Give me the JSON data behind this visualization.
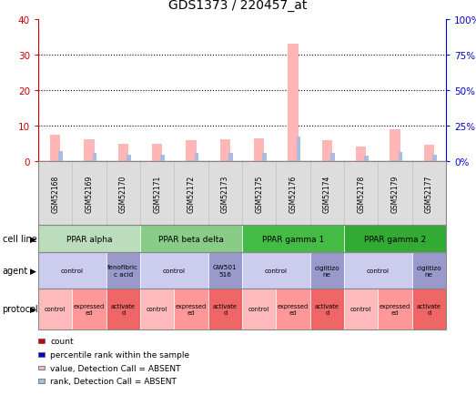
{
  "title": "GDS1373 / 220457_at",
  "samples": [
    "GSM52168",
    "GSM52169",
    "GSM52170",
    "GSM52171",
    "GSM52172",
    "GSM52173",
    "GSM52175",
    "GSM52176",
    "GSM52174",
    "GSM52178",
    "GSM52179",
    "GSM52177"
  ],
  "values": [
    7.5,
    6.2,
    4.8,
    5.0,
    6.0,
    6.2,
    6.5,
    33.0,
    6.0,
    4.2,
    9.0,
    4.5
  ],
  "ranks": [
    7.0,
    5.8,
    4.5,
    4.8,
    5.5,
    5.8,
    6.0,
    17.5,
    5.5,
    4.0,
    6.5,
    4.2
  ],
  "value_color": "#FFB6B6",
  "rank_color": "#AABBDD",
  "ylim_left": [
    0,
    40
  ],
  "ylim_right": [
    0,
    100
  ],
  "yticks_left": [
    0,
    10,
    20,
    30,
    40
  ],
  "yticks_right": [
    0,
    25,
    50,
    75,
    100
  ],
  "ytick_labels_left": [
    "0",
    "10",
    "20",
    "30",
    "40"
  ],
  "ytick_labels_right": [
    "0%",
    "25%",
    "50%",
    "75%",
    "100%"
  ],
  "left_axis_color": "#CC0000",
  "right_axis_color": "#0000CC",
  "cell_lines": [
    {
      "label": "PPAR alpha",
      "start": 0,
      "end": 3,
      "color": "#BBDDBB"
    },
    {
      "label": "PPAR beta delta",
      "start": 3,
      "end": 6,
      "color": "#88CC88"
    },
    {
      "label": "PPAR gamma 1",
      "start": 6,
      "end": 9,
      "color": "#44BB44"
    },
    {
      "label": "PPAR gamma 2",
      "start": 9,
      "end": 12,
      "color": "#33AA33"
    }
  ],
  "agents": [
    {
      "label": "control",
      "start": 0,
      "end": 2,
      "color": "#CCCCEE"
    },
    {
      "label": "fenofibric\nc acid",
      "start": 2,
      "end": 3,
      "color": "#9999CC"
    },
    {
      "label": "control",
      "start": 3,
      "end": 5,
      "color": "#CCCCEE"
    },
    {
      "label": "GW501\n516",
      "start": 5,
      "end": 6,
      "color": "#9999CC"
    },
    {
      "label": "control",
      "start": 6,
      "end": 8,
      "color": "#CCCCEE"
    },
    {
      "label": "ciglitizo\nne",
      "start": 8,
      "end": 9,
      "color": "#9999CC"
    },
    {
      "label": "control",
      "start": 9,
      "end": 11,
      "color": "#CCCCEE"
    },
    {
      "label": "ciglitizo\nne",
      "start": 11,
      "end": 12,
      "color": "#9999CC"
    }
  ],
  "protocols": [
    {
      "label": "control",
      "start": 0,
      "end": 1,
      "color": "#FFBBBB"
    },
    {
      "label": "expressed\ned",
      "start": 1,
      "end": 2,
      "color": "#FF9999"
    },
    {
      "label": "activate\nd",
      "start": 2,
      "end": 3,
      "color": "#EE6666"
    },
    {
      "label": "control",
      "start": 3,
      "end": 4,
      "color": "#FFBBBB"
    },
    {
      "label": "expressed\ned",
      "start": 4,
      "end": 5,
      "color": "#FF9999"
    },
    {
      "label": "activate\nd",
      "start": 5,
      "end": 6,
      "color": "#EE6666"
    },
    {
      "label": "control",
      "start": 6,
      "end": 7,
      "color": "#FFBBBB"
    },
    {
      "label": "expressed\ned",
      "start": 7,
      "end": 8,
      "color": "#FF9999"
    },
    {
      "label": "activate\nd",
      "start": 8,
      "end": 9,
      "color": "#EE6666"
    },
    {
      "label": "control",
      "start": 9,
      "end": 10,
      "color": "#FFBBBB"
    },
    {
      "label": "expressed\ned",
      "start": 10,
      "end": 11,
      "color": "#FF9999"
    },
    {
      "label": "activate\nd",
      "start": 11,
      "end": 12,
      "color": "#EE6666"
    }
  ],
  "legend_items": [
    {
      "label": "count",
      "color": "#CC0000"
    },
    {
      "label": "percentile rank within the sample",
      "color": "#0000CC"
    },
    {
      "label": "value, Detection Call = ABSENT",
      "color": "#FFB6B6"
    },
    {
      "label": "rank, Detection Call = ABSENT",
      "color": "#AABBDD"
    }
  ]
}
